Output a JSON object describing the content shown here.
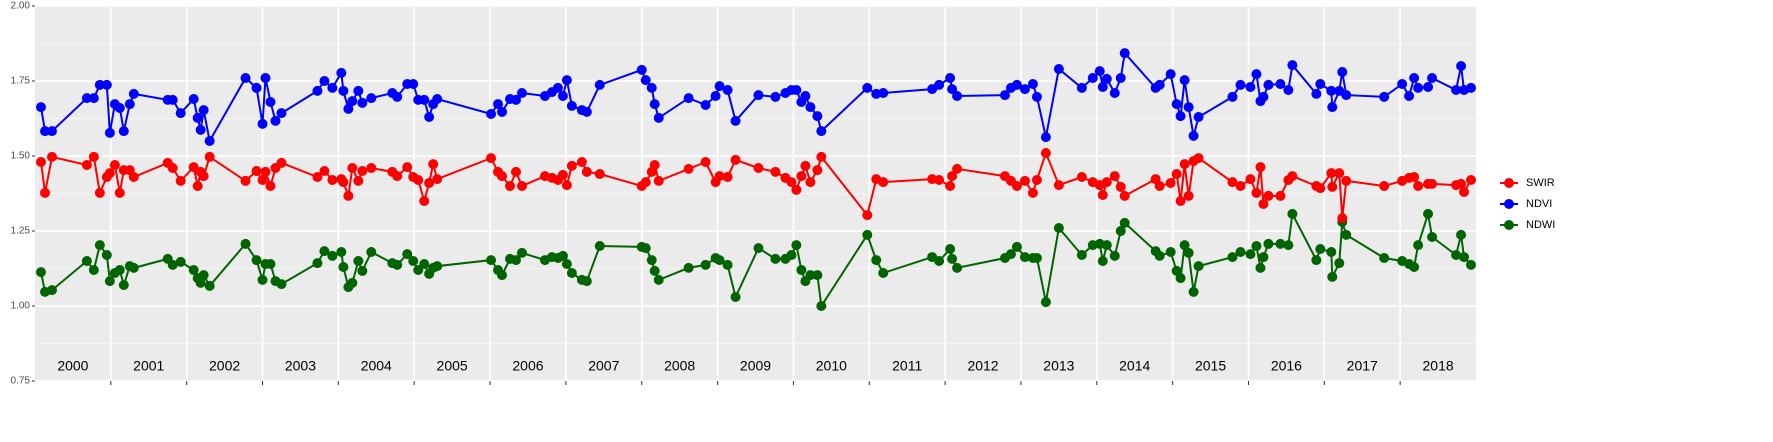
{
  "chart_data": {
    "type": "line",
    "xlim": [
      2000,
      2019
    ],
    "xticks": [
      2001,
      2002,
      2003,
      2004,
      2005,
      2006,
      2007,
      2008,
      2009,
      2010,
      2011,
      2012,
      2013,
      2014,
      2015,
      2016,
      2017,
      2018
    ],
    "ylim": [
      0.75,
      2.0
    ],
    "yticks": [
      {
        "value": 0.75,
        "label": "0.75"
      },
      {
        "value": 1.0,
        "label": "1.00"
      },
      {
        "value": 1.25,
        "label": "1.25"
      },
      {
        "value": 1.5,
        "label": "1.50"
      },
      {
        "value": 1.75,
        "label": "1.75"
      },
      {
        "value": 2.0,
        "label": "2.00"
      }
    ],
    "grid": true,
    "legend": "right",
    "year_labels": [
      "2000",
      "2001",
      "2002",
      "2003",
      "2004",
      "2005",
      "2006",
      "2007",
      "2008",
      "2009",
      "2010",
      "2011",
      "2012",
      "2013",
      "2014",
      "2015",
      "2016",
      "2017",
      "2018"
    ],
    "x": [
      2000.079,
      2000.132,
      2000.224,
      2000.684,
      2000.776,
      2000.855,
      2000.947,
      2000.987,
      2001.053,
      2001.118,
      2001.171,
      2001.25,
      2001.303,
      2001.75,
      2001.816,
      2001.921,
      2002.092,
      2002.145,
      2002.184,
      2002.224,
      2002.303,
      2002.776,
      2002.921,
      2003.0,
      2003.039,
      2003.105,
      2003.171,
      2003.25,
      2003.724,
      2003.816,
      2003.921,
      2004.039,
      2004.066,
      2004.132,
      2004.184,
      2004.263,
      2004.316,
      2004.434,
      2004.711,
      2004.776,
      2004.908,
      2004.987,
      2005.053,
      2005.132,
      2005.197,
      2005.25,
      2005.303,
      2006.013,
      2006.105,
      2006.158,
      2006.263,
      2006.342,
      2006.421,
      2006.724,
      2006.816,
      2006.895,
      2006.961,
      2007.013,
      2007.079,
      2007.211,
      2007.276,
      2007.447,
      2008.0,
      2008.053,
      2008.132,
      2008.171,
      2008.224,
      2008.618,
      2008.842,
      2008.974,
      2009.026,
      2009.132,
      2009.237,
      2009.539,
      2009.763,
      2009.895,
      2009.974,
      2010.039,
      2010.105,
      2010.158,
      2010.224,
      2010.316,
      2010.368,
      2010.974,
      2011.092,
      2011.184,
      2011.829,
      2011.921,
      2012.066,
      2012.092,
      2012.158,
      2012.789,
      2012.868,
      2012.947,
      2013.053,
      2013.158,
      2013.211,
      2013.329,
      2013.5,
      2013.803,
      2013.947,
      2014.039,
      2014.079,
      2014.132,
      2014.237,
      2014.316,
      2014.368,
      2014.776,
      2014.829,
      2014.974,
      2015.053,
      2015.105,
      2015.158,
      2015.211,
      2015.276,
      2015.342,
      2015.789,
      2015.895,
      2016.026,
      2016.105,
      2016.158,
      2016.197,
      2016.263,
      2016.421,
      2016.526,
      2016.579,
      2016.895,
      2016.947,
      2017.092,
      2017.105,
      2017.197,
      2017.237,
      2017.289,
      2017.789,
      2018.026,
      2018.118,
      2018.184,
      2018.237,
      2018.368,
      2018.421,
      2018.737,
      2018.803,
      2018.842,
      2018.934
    ],
    "series": [
      {
        "name": "SWIR",
        "color": "#ff0000",
        "values": [
          1.48,
          1.377,
          1.497,
          1.47,
          1.497,
          1.377,
          1.43,
          1.443,
          1.47,
          1.377,
          1.453,
          1.453,
          1.43,
          1.477,
          1.46,
          1.417,
          1.463,
          1.4,
          1.447,
          1.433,
          1.497,
          1.417,
          1.45,
          1.42,
          1.447,
          1.4,
          1.46,
          1.477,
          1.43,
          1.45,
          1.42,
          1.423,
          1.413,
          1.367,
          1.46,
          1.417,
          1.45,
          1.46,
          1.447,
          1.433,
          1.463,
          1.43,
          1.42,
          1.35,
          1.41,
          1.473,
          1.423,
          1.493,
          1.447,
          1.433,
          1.4,
          1.447,
          1.4,
          1.433,
          1.427,
          1.42,
          1.437,
          1.403,
          1.467,
          1.48,
          1.447,
          1.44,
          1.4,
          1.413,
          1.447,
          1.47,
          1.417,
          1.457,
          1.48,
          1.413,
          1.433,
          1.43,
          1.487,
          1.46,
          1.447,
          1.427,
          1.413,
          1.387,
          1.433,
          1.467,
          1.413,
          1.453,
          1.497,
          1.303,
          1.423,
          1.413,
          1.423,
          1.42,
          1.4,
          1.433,
          1.457,
          1.433,
          1.417,
          1.4,
          1.417,
          1.377,
          1.42,
          1.51,
          1.403,
          1.43,
          1.413,
          1.403,
          1.37,
          1.413,
          1.433,
          1.397,
          1.367,
          1.423,
          1.4,
          1.41,
          1.44,
          1.35,
          1.473,
          1.367,
          1.483,
          1.493,
          1.413,
          1.4,
          1.423,
          1.377,
          1.463,
          1.34,
          1.367,
          1.367,
          1.42,
          1.433,
          1.4,
          1.393,
          1.443,
          1.397,
          1.443,
          1.293,
          1.417,
          1.4,
          1.417,
          1.427,
          1.43,
          1.4,
          1.407,
          1.407,
          1.403,
          1.407,
          1.38,
          1.42
        ]
      },
      {
        "name": "NDVI",
        "color": "#0000ff",
        "values": [
          1.663,
          1.583,
          1.583,
          1.693,
          1.693,
          1.737,
          1.737,
          1.577,
          1.673,
          1.66,
          1.583,
          1.673,
          1.707,
          1.687,
          1.687,
          1.643,
          1.69,
          1.627,
          1.587,
          1.653,
          1.55,
          1.76,
          1.727,
          1.607,
          1.76,
          1.68,
          1.617,
          1.643,
          1.717,
          1.75,
          1.727,
          1.777,
          1.717,
          1.657,
          1.683,
          1.717,
          1.677,
          1.693,
          1.71,
          1.697,
          1.74,
          1.74,
          1.687,
          1.687,
          1.63,
          1.673,
          1.69,
          1.64,
          1.673,
          1.647,
          1.69,
          1.687,
          1.71,
          1.7,
          1.713,
          1.727,
          1.7,
          1.753,
          1.667,
          1.653,
          1.647,
          1.737,
          1.787,
          1.753,
          1.727,
          1.673,
          1.627,
          1.693,
          1.67,
          1.7,
          1.733,
          1.72,
          1.617,
          1.703,
          1.697,
          1.71,
          1.72,
          1.72,
          1.68,
          1.7,
          1.663,
          1.633,
          1.583,
          1.727,
          1.707,
          1.71,
          1.723,
          1.737,
          1.76,
          1.723,
          1.7,
          1.703,
          1.727,
          1.737,
          1.723,
          1.74,
          1.697,
          1.563,
          1.79,
          1.727,
          1.76,
          1.783,
          1.73,
          1.757,
          1.71,
          1.76,
          1.843,
          1.727,
          1.737,
          1.773,
          1.673,
          1.633,
          1.753,
          1.663,
          1.567,
          1.63,
          1.697,
          1.737,
          1.73,
          1.773,
          1.683,
          1.697,
          1.737,
          1.74,
          1.72,
          1.803,
          1.707,
          1.74,
          1.717,
          1.663,
          1.717,
          1.78,
          1.703,
          1.697,
          1.74,
          1.7,
          1.76,
          1.727,
          1.73,
          1.76,
          1.72,
          1.8,
          1.72,
          1.727
        ]
      },
      {
        "name": "NDWI",
        "color": "#006400",
        "values": [
          1.113,
          1.047,
          1.053,
          1.15,
          1.12,
          1.203,
          1.17,
          1.083,
          1.11,
          1.12,
          1.07,
          1.133,
          1.127,
          1.157,
          1.137,
          1.147,
          1.12,
          1.093,
          1.077,
          1.103,
          1.067,
          1.207,
          1.153,
          1.087,
          1.14,
          1.14,
          1.083,
          1.073,
          1.143,
          1.183,
          1.167,
          1.18,
          1.13,
          1.063,
          1.077,
          1.15,
          1.117,
          1.18,
          1.143,
          1.137,
          1.173,
          1.15,
          1.12,
          1.14,
          1.107,
          1.127,
          1.133,
          1.153,
          1.12,
          1.103,
          1.157,
          1.153,
          1.177,
          1.153,
          1.163,
          1.16,
          1.167,
          1.14,
          1.11,
          1.087,
          1.083,
          1.2,
          1.197,
          1.193,
          1.153,
          1.117,
          1.087,
          1.127,
          1.137,
          1.16,
          1.153,
          1.137,
          1.03,
          1.193,
          1.157,
          1.157,
          1.17,
          1.203,
          1.12,
          1.083,
          1.103,
          1.103,
          1.0,
          1.237,
          1.153,
          1.11,
          1.163,
          1.15,
          1.19,
          1.157,
          1.127,
          1.16,
          1.173,
          1.197,
          1.163,
          1.16,
          1.16,
          1.013,
          1.26,
          1.17,
          1.203,
          1.207,
          1.15,
          1.203,
          1.167,
          1.25,
          1.277,
          1.183,
          1.167,
          1.18,
          1.117,
          1.093,
          1.203,
          1.177,
          1.047,
          1.133,
          1.163,
          1.18,
          1.173,
          1.2,
          1.127,
          1.163,
          1.207,
          1.207,
          1.203,
          1.307,
          1.153,
          1.19,
          1.18,
          1.097,
          1.143,
          1.28,
          1.237,
          1.16,
          1.15,
          1.14,
          1.13,
          1.203,
          1.307,
          1.23,
          1.17,
          1.237,
          1.163,
          1.137
        ]
      }
    ]
  }
}
